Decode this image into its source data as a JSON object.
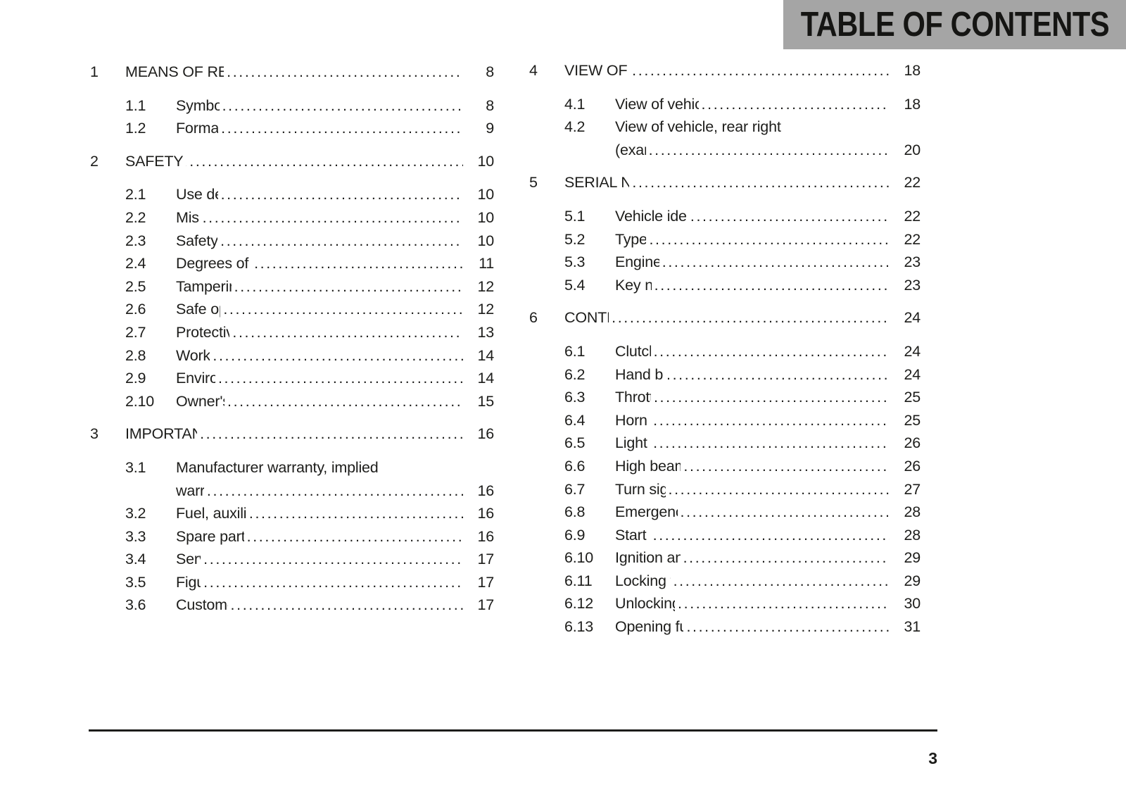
{
  "header": {
    "title": "TABLE OF CONTENTS"
  },
  "footer": {
    "page_number": "3"
  },
  "colors": {
    "header_bg": "#a5a5a5",
    "text_color": "#1d1d1b"
  },
  "toc": {
    "columns": [
      {
        "sections": [
          {
            "number": "1",
            "title": "MEANS OF REPRESENTATION",
            "page": "8",
            "entries": [
              {
                "number": "1.1",
                "lines": [
                  "Symbols used"
                ],
                "page": "8"
              },
              {
                "number": "1.2",
                "lines": [
                  "Formats used"
                ],
                "page": "9"
              }
            ]
          },
          {
            "number": "2",
            "title": "SAFETY ADVICE",
            "page": "10",
            "entries": [
              {
                "number": "2.1",
                "lines": [
                  "Use definition"
                ],
                "page": "10"
              },
              {
                "number": "2.2",
                "lines": [
                  "Misuse"
                ],
                "page": "10"
              },
              {
                "number": "2.3",
                "lines": [
                  "Safety advice"
                ],
                "page": "10"
              },
              {
                "number": "2.4",
                "lines": [
                  "Degrees of risk and symbols"
                ],
                "page": "11"
              },
              {
                "number": "2.5",
                "lines": [
                  "Tampering warning"
                ],
                "page": "12"
              },
              {
                "number": "2.6",
                "lines": [
                  "Safe operation"
                ],
                "page": "12"
              },
              {
                "number": "2.7",
                "lines": [
                  "Protective clothing"
                ],
                "page": "13"
              },
              {
                "number": "2.8",
                "lines": [
                  "Work rules"
                ],
                "page": "14"
              },
              {
                "number": "2.9",
                "lines": [
                  "Environment"
                ],
                "page": "14"
              },
              {
                "number": "2.10",
                "lines": [
                  "Owner's Manual"
                ],
                "page": "15"
              }
            ]
          },
          {
            "number": "3",
            "title": "IMPORTANT NOTES",
            "page": "16",
            "entries": [
              {
                "number": "3.1",
                "lines": [
                  "Manufacturer warranty, implied",
                  "warranty"
                ],
                "page": "16"
              },
              {
                "number": "3.2",
                "lines": [
                  "Fuel, auxiliary substances"
                ],
                "page": "16"
              },
              {
                "number": "3.3",
                "lines": [
                  "Spare parts, accessories"
                ],
                "page": "16"
              },
              {
                "number": "3.4",
                "lines": [
                  "Service"
                ],
                "page": "17"
              },
              {
                "number": "3.5",
                "lines": [
                  "Figures"
                ],
                "page": "17"
              },
              {
                "number": "3.6",
                "lines": [
                  "Customer service"
                ],
                "page": "17"
              }
            ]
          }
        ]
      },
      {
        "sections": [
          {
            "number": "4",
            "title": "VIEW OF VEHICLE",
            "page": "18",
            "entries": [
              {
                "number": "4.1",
                "lines": [
                  "View of vehicle, front left (example)"
                ],
                "page": "18"
              },
              {
                "number": "4.2",
                "lines": [
                  "View of vehicle, rear right",
                  "(example)"
                ],
                "page": "20"
              }
            ]
          },
          {
            "number": "5",
            "title": "SERIAL NUMBERS",
            "page": "22",
            "entries": [
              {
                "number": "5.1",
                "lines": [
                  "Vehicle identification number"
                ],
                "page": "22"
              },
              {
                "number": "5.2",
                "lines": [
                  "Type label"
                ],
                "page": "22"
              },
              {
                "number": "5.3",
                "lines": [
                  "Engine number"
                ],
                "page": "23"
              },
              {
                "number": "5.4",
                "lines": [
                  "Key number"
                ],
                "page": "23"
              }
            ]
          },
          {
            "number": "6",
            "title": "CONTROLS",
            "page": "24",
            "entries": [
              {
                "number": "6.1",
                "lines": [
                  "Clutch lever"
                ],
                "page": "24"
              },
              {
                "number": "6.2",
                "lines": [
                  "Hand brake lever"
                ],
                "page": "24"
              },
              {
                "number": "6.3",
                "lines": [
                  "Throttle grip"
                ],
                "page": "25"
              },
              {
                "number": "6.4",
                "lines": [
                  "Horn button"
                ],
                "page": "25"
              },
              {
                "number": "6.5",
                "lines": [
                  "Light switch"
                ],
                "page": "26"
              },
              {
                "number": "6.6",
                "lines": [
                  "High beam flasher button"
                ],
                "page": "26"
              },
              {
                "number": "6.7",
                "lines": [
                  "Turn signal switch"
                ],
                "page": "27"
              },
              {
                "number": "6.8",
                "lines": [
                  "Emergency OFF switch"
                ],
                "page": "28"
              },
              {
                "number": "6.9",
                "lines": [
                  "Start button"
                ],
                "page": "28"
              },
              {
                "number": "6.10",
                "lines": [
                  "Ignition and steering lock"
                ],
                "page": "29"
              },
              {
                "number": "6.11",
                "lines": [
                  "Locking the steering"
                ],
                "page": "29"
              },
              {
                "number": "6.12",
                "lines": [
                  "Unlocking the steering"
                ],
                "page": "30"
              },
              {
                "number": "6.13",
                "lines": [
                  "Opening fuel tank filler cap"
                ],
                "page": "31"
              }
            ]
          }
        ]
      }
    ]
  }
}
